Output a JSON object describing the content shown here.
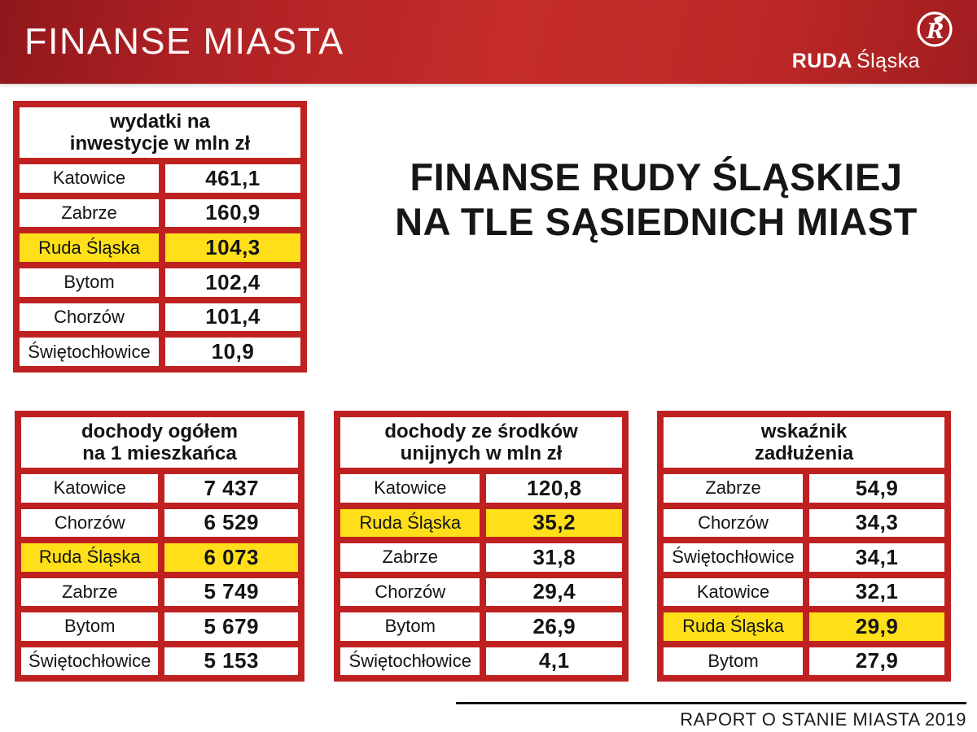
{
  "header": {
    "title": "FINANSE MIASTA",
    "brand_bold": "RUDA",
    "brand_light": "Śląska",
    "logo_icon": "ruda-slaska-crest-icon"
  },
  "main_title": {
    "line1": "FINANSE RUDY ŚLĄSKIEJ",
    "line2": "NA TLE SĄSIEDNICH MIAST"
  },
  "footer": {
    "text": "RAPORT O STANIE MIASTA 2019"
  },
  "colors": {
    "banner_red": "#c52c29",
    "table_border_red": "#bf2121",
    "highlight_yellow": "#ffdf1a",
    "text_black": "#141414",
    "white": "#ffffff"
  },
  "chart_data": [
    {
      "type": "table",
      "title": "wydatki na inwestycje w mln zł",
      "title_lines": [
        "wydatki na",
        "inwestycje w mln zł"
      ],
      "rows": [
        {
          "city": "Katowice",
          "value": "461,1",
          "highlight": false
        },
        {
          "city": "Zabrze",
          "value": "160,9",
          "highlight": false
        },
        {
          "city": "Ruda Śląska",
          "value": "104,3",
          "highlight": true
        },
        {
          "city": "Bytom",
          "value": "102,4",
          "highlight": false
        },
        {
          "city": "Chorzów",
          "value": "101,4",
          "highlight": false
        },
        {
          "city": "Świętochłowice",
          "value": "10,9",
          "highlight": false
        }
      ]
    },
    {
      "type": "table",
      "title": "dochody ogółem na 1 mieszkańca",
      "title_lines": [
        "dochody ogółem",
        "na 1 mieszkańca"
      ],
      "rows": [
        {
          "city": "Katowice",
          "value": "7 437",
          "highlight": false
        },
        {
          "city": "Chorzów",
          "value": "6 529",
          "highlight": false
        },
        {
          "city": "Ruda Śląska",
          "value": "6 073",
          "highlight": true
        },
        {
          "city": "Zabrze",
          "value": "5 749",
          "highlight": false
        },
        {
          "city": "Bytom",
          "value": "5 679",
          "highlight": false
        },
        {
          "city": "Świętochłowice",
          "value": "5 153",
          "highlight": false
        }
      ]
    },
    {
      "type": "table",
      "title": "dochody ze środków unijnych w mln zł",
      "title_lines": [
        "dochody ze środków",
        "unijnych w mln zł"
      ],
      "rows": [
        {
          "city": "Katowice",
          "value": "120,8",
          "highlight": false
        },
        {
          "city": "Ruda Śląska",
          "value": "35,2",
          "highlight": true
        },
        {
          "city": "Zabrze",
          "value": "31,8",
          "highlight": false
        },
        {
          "city": "Chorzów",
          "value": "29,4",
          "highlight": false
        },
        {
          "city": "Bytom",
          "value": "26,9",
          "highlight": false
        },
        {
          "city": "Świętochłowice",
          "value": "4,1",
          "highlight": false
        }
      ]
    },
    {
      "type": "table",
      "title": "wskaźnik zadłużenia",
      "title_lines": [
        "wskaźnik",
        "zadłużenia"
      ],
      "rows": [
        {
          "city": "Zabrze",
          "value": "54,9",
          "highlight": false
        },
        {
          "city": "Chorzów",
          "value": "34,3",
          "highlight": false
        },
        {
          "city": "Świętochłowice",
          "value": "34,1",
          "highlight": false
        },
        {
          "city": "Katowice",
          "value": "32,1",
          "highlight": false
        },
        {
          "city": "Ruda Śląska",
          "value": "29,9",
          "highlight": true
        },
        {
          "city": "Bytom",
          "value": "27,9",
          "highlight": false
        }
      ]
    }
  ]
}
